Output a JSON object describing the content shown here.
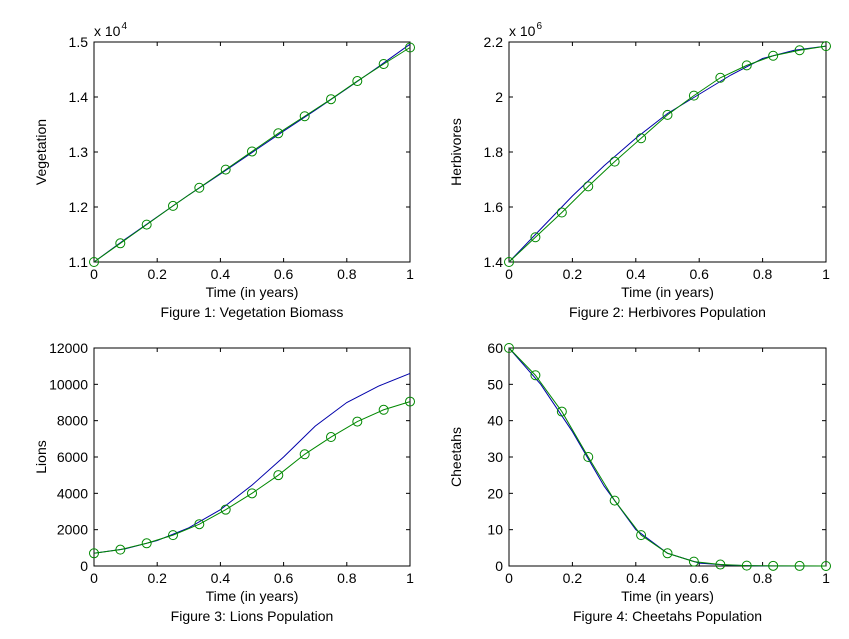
{
  "chart_data": [
    {
      "type": "line",
      "caption": "Figure 1: Vegetation Biomass",
      "title": "",
      "xlabel": "Time (in years)",
      "ylabel": "Vegetation",
      "xlim": [
        0,
        1
      ],
      "ylim": [
        11000,
        15000
      ],
      "x_ticks": [
        "0",
        "0.2",
        "0.4",
        "0.6",
        "0.8",
        "1"
      ],
      "y_ticks": [
        "1.1",
        "1.2",
        "1.3",
        "1.4",
        "1.5"
      ],
      "y_scale_label": "x 10",
      "y_scale_exponent": "4",
      "series": [
        {
          "color": "#0000aa",
          "marker": "none",
          "x": [
            0,
            0.1,
            0.2,
            0.3,
            0.4,
            0.5,
            0.6,
            0.7,
            0.8,
            0.9,
            1.0
          ],
          "y": [
            11000,
            11420,
            11820,
            12220,
            12600,
            12990,
            13380,
            13760,
            14150,
            14550,
            14960
          ]
        },
        {
          "color": "#008800",
          "marker": "circle",
          "x": [
            0,
            0.0833,
            0.1667,
            0.25,
            0.3333,
            0.4167,
            0.5,
            0.5833,
            0.6667,
            0.75,
            0.8333,
            0.9167,
            1.0
          ],
          "y": [
            11000,
            11340,
            11680,
            12020,
            12350,
            12680,
            13010,
            13340,
            13650,
            13960,
            14290,
            14600,
            14900
          ]
        }
      ]
    },
    {
      "type": "line",
      "caption": "Figure 2: Herbivores Population",
      "title": "",
      "xlabel": "Time (in years)",
      "ylabel": "Herbivores",
      "xlim": [
        0,
        1
      ],
      "ylim": [
        1400000,
        2200000
      ],
      "x_ticks": [
        "0",
        "0.2",
        "0.4",
        "0.6",
        "0.8",
        "1"
      ],
      "y_ticks": [
        "1.4",
        "1.6",
        "1.8",
        "2",
        "2.2"
      ],
      "y_scale_label": "x 10",
      "y_scale_exponent": "6",
      "series": [
        {
          "color": "#0000aa",
          "marker": "none",
          "x": [
            0,
            0.1,
            0.2,
            0.3,
            0.4,
            0.5,
            0.6,
            0.7,
            0.8,
            0.9,
            1.0
          ],
          "y": [
            1400000,
            1520000,
            1640000,
            1750000,
            1850000,
            1940000,
            2010000,
            2080000,
            2140000,
            2170000,
            2185000
          ]
        },
        {
          "color": "#008800",
          "marker": "circle",
          "x": [
            0,
            0.0833,
            0.1667,
            0.25,
            0.3333,
            0.4167,
            0.5,
            0.5833,
            0.6667,
            0.75,
            0.8333,
            0.9167,
            1.0
          ],
          "y": [
            1400000,
            1490000,
            1580000,
            1675000,
            1765000,
            1850000,
            1935000,
            2005000,
            2070000,
            2115000,
            2150000,
            2170000,
            2185000
          ]
        }
      ]
    },
    {
      "type": "line",
      "caption": "Figure 3: Lions Population",
      "title": "",
      "xlabel": "Time (in years)",
      "ylabel": "Lions",
      "xlim": [
        0,
        1
      ],
      "ylim": [
        0,
        12000
      ],
      "x_ticks": [
        "0",
        "0.2",
        "0.4",
        "0.6",
        "0.8",
        "1"
      ],
      "y_ticks": [
        "0",
        "2000",
        "4000",
        "6000",
        "8000",
        "10000",
        "12000"
      ],
      "y_scale_label": "",
      "y_scale_exponent": "",
      "series": [
        {
          "color": "#0000aa",
          "marker": "none",
          "x": [
            0,
            0.1,
            0.2,
            0.3,
            0.4,
            0.5,
            0.6,
            0.7,
            0.8,
            0.9,
            1.0
          ],
          "y": [
            700,
            950,
            1400,
            2100,
            3100,
            4450,
            6000,
            7700,
            9000,
            9900,
            10600
          ]
        },
        {
          "color": "#008800",
          "marker": "circle",
          "x": [
            0,
            0.0833,
            0.1667,
            0.25,
            0.3333,
            0.4167,
            0.5,
            0.5833,
            0.6667,
            0.75,
            0.8333,
            0.9167,
            1.0
          ],
          "y": [
            700,
            900,
            1250,
            1700,
            2300,
            3100,
            4000,
            5000,
            6150,
            7100,
            7950,
            8600,
            9050
          ]
        }
      ]
    },
    {
      "type": "line",
      "caption": "Figure 4: Cheetahs Population",
      "title": "",
      "xlabel": "Time (in years)",
      "ylabel": "Cheetahs",
      "xlim": [
        0,
        1
      ],
      "ylim": [
        0,
        60
      ],
      "x_ticks": [
        "0",
        "0.2",
        "0.4",
        "0.6",
        "0.8",
        "1"
      ],
      "y_ticks": [
        "0",
        "10",
        "20",
        "30",
        "40",
        "50",
        "60"
      ],
      "y_scale_label": "",
      "y_scale_exponent": "",
      "series": [
        {
          "color": "#0000aa",
          "marker": "none",
          "x": [
            0,
            0.1,
            0.2,
            0.3,
            0.4,
            0.5,
            0.6,
            0.7,
            0.8,
            0.9,
            1.0
          ],
          "y": [
            60,
            50,
            37,
            22,
            10,
            3.5,
            0.8,
            0.2,
            0.05,
            0.01,
            0
          ]
        },
        {
          "color": "#008800",
          "marker": "circle",
          "x": [
            0,
            0.0833,
            0.1667,
            0.25,
            0.3333,
            0.4167,
            0.5,
            0.5833,
            0.6667,
            0.75,
            0.8333,
            0.9167,
            1.0
          ],
          "y": [
            60,
            52.5,
            42.5,
            30,
            18,
            8.5,
            3.5,
            1.2,
            0.4,
            0.1,
            0.05,
            0.02,
            0
          ]
        }
      ]
    }
  ]
}
